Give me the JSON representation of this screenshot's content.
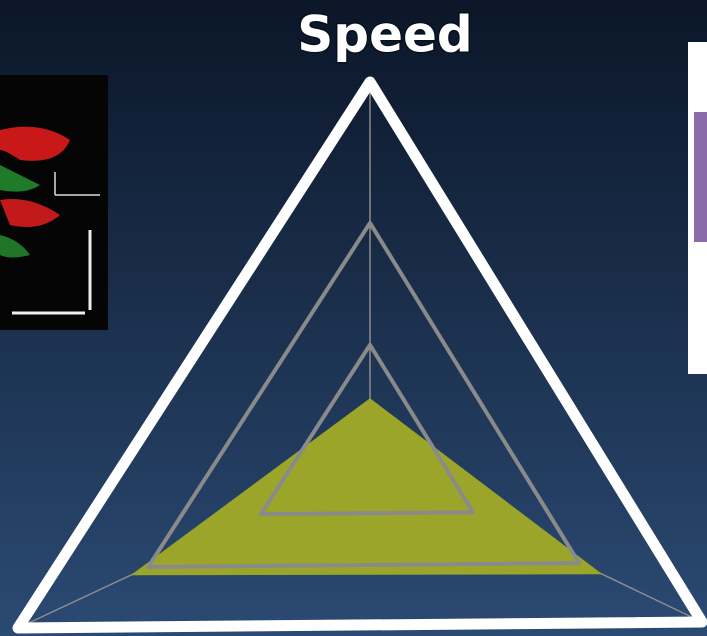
{
  "chart_data": {
    "type": "radar",
    "categories": [
      "Speed",
      null,
      null
    ],
    "values": [
      0.17,
      0.68,
      0.7
    ],
    "color": "#9ba52a",
    "rlim": [
      0,
      1
    ],
    "rticks": [
      0.31,
      0.63,
      1
    ],
    "grid": true
  }
}
